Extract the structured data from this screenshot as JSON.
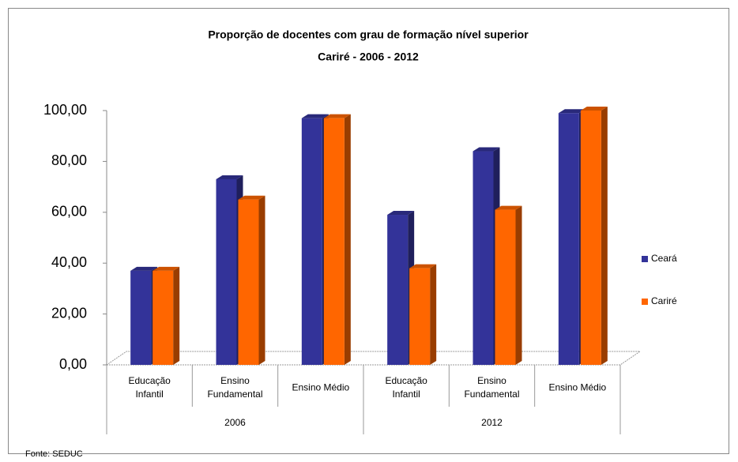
{
  "chart_data": {
    "type": "bar",
    "title": "Proporção de docentes com grau de formação nível superior",
    "subtitle": "Cariré - 2006 - 2012",
    "categories": [
      "Educação Infantil",
      "Ensino Fundamental",
      "Ensino Médio",
      "Educação Infantil",
      "Ensino Fundamental",
      "Ensino Médio"
    ],
    "groups": [
      "2006",
      "2012"
    ],
    "series": [
      {
        "name": "Ceará",
        "color": "#333399",
        "values": [
          37,
          73,
          97,
          59,
          84,
          99
        ]
      },
      {
        "name": "Cariré",
        "color": "#ff6600",
        "values": [
          37,
          65,
          97,
          38,
          61,
          100
        ]
      }
    ],
    "ylim": [
      0,
      100
    ],
    "yticks": [
      {
        "value": 0,
        "label": "0,00"
      },
      {
        "value": 20,
        "label": "20,00"
      },
      {
        "value": 40,
        "label": "40,00"
      },
      {
        "value": 60,
        "label": "60,00"
      },
      {
        "value": 80,
        "label": "80,00"
      },
      {
        "value": 100,
        "label": "100,00"
      }
    ],
    "legend": "right",
    "source": "Fonte: SEDUC"
  }
}
